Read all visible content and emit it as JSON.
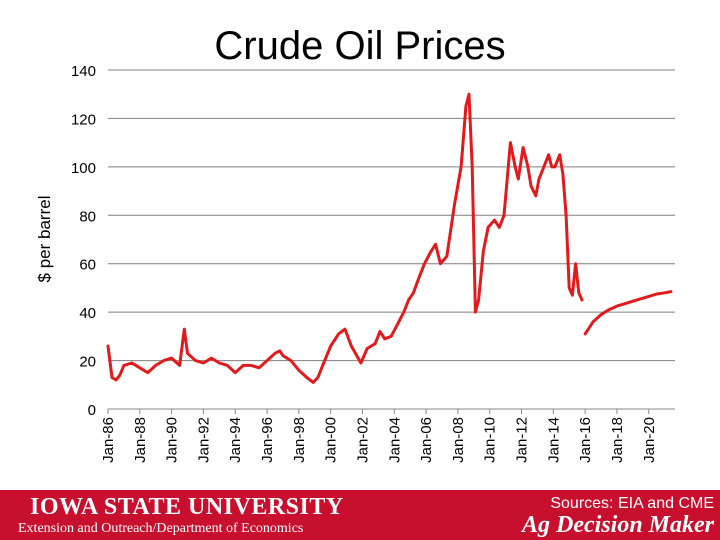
{
  "chart_data": {
    "type": "line",
    "title": "Crude Oil Prices",
    "ylabel": "$ per barrel",
    "xlabel": "",
    "ylim": [
      0,
      140
    ],
    "yticks": [
      0,
      20,
      40,
      60,
      80,
      100,
      120,
      140
    ],
    "xticks": [
      "Jan-86",
      "Jan-88",
      "Jan-90",
      "Jan-92",
      "Jan-94",
      "Jan-96",
      "Jan-98",
      "Jan-00",
      "Jan-02",
      "Jan-04",
      "Jan-06",
      "Jan-08",
      "Jan-10",
      "Jan-12",
      "Jan-14",
      "Jan-16",
      "Jan-18",
      "Jan-20"
    ],
    "grid": true,
    "color": "#e31a1c",
    "series": [
      {
        "kind": "historical",
        "x": [
          1986.0,
          1986.25,
          1986.5,
          1986.75,
          1987.0,
          1987.5,
          1988.0,
          1988.5,
          1989.0,
          1989.5,
          1990.0,
          1990.5,
          1990.8,
          1991.0,
          1991.5,
          1992.0,
          1992.5,
          1993.0,
          1993.5,
          1994.0,
          1994.5,
          1995.0,
          1995.5,
          1996.0,
          1996.5,
          1996.8,
          1997.0,
          1997.5,
          1998.0,
          1998.5,
          1998.9,
          1999.2,
          1999.5,
          2000.0,
          2000.5,
          2000.9,
          2001.3,
          2001.9,
          2002.3,
          2002.8,
          2003.1,
          2003.4,
          2003.8,
          2004.2,
          2004.6,
          2004.9,
          2005.2,
          2005.6,
          2005.9,
          2006.3,
          2006.6,
          2006.9,
          2007.3,
          2007.8,
          2008.2,
          2008.5,
          2008.7,
          2008.9,
          2009.1,
          2009.3,
          2009.6,
          2009.9,
          2010.3,
          2010.6,
          2010.9,
          2011.1,
          2011.3,
          2011.6,
          2011.8,
          2012.1,
          2012.4,
          2012.6,
          2012.9,
          2013.1,
          2013.4,
          2013.7,
          2013.9,
          2014.1,
          2014.4,
          2014.6,
          2014.8,
          2015.0,
          2015.2,
          2015.4,
          2015.6,
          2015.8
        ],
        "y": [
          26,
          13,
          12,
          14,
          18,
          19,
          17,
          15,
          18,
          20,
          21,
          18,
          33,
          23,
          20,
          19,
          21,
          19,
          18,
          15,
          18,
          18,
          17,
          20,
          23,
          24,
          22,
          20,
          16,
          13,
          11,
          13,
          18,
          26,
          31,
          33,
          26,
          19,
          25,
          27,
          32,
          29,
          30,
          35,
          40,
          45,
          48,
          55,
          60,
          65,
          68,
          60,
          63,
          85,
          100,
          125,
          130,
          100,
          40,
          45,
          65,
          75,
          78,
          75,
          80,
          95,
          110,
          100,
          95,
          108,
          100,
          92,
          88,
          95,
          100,
          105,
          100,
          100,
          105,
          97,
          80,
          50,
          47,
          60,
          48,
          45
        ]
      },
      {
        "kind": "futures",
        "x": [
          2016.0,
          2016.5,
          2017.0,
          2017.5,
          2018.0,
          2018.5,
          2019.0,
          2019.5,
          2020.0,
          2020.5,
          2021.0,
          2021.4
        ],
        "y": [
          31,
          36,
          39,
          41,
          42.5,
          43.5,
          44.5,
          45.5,
          46.5,
          47.5,
          48,
          48.5
        ]
      }
    ]
  },
  "footer": {
    "university": "IOWA STATE UNIVERSITY",
    "department": "Extension and Outreach/Department of Economics",
    "sources": "Sources: EIA and CME",
    "brand": "Ag Decision Maker"
  }
}
